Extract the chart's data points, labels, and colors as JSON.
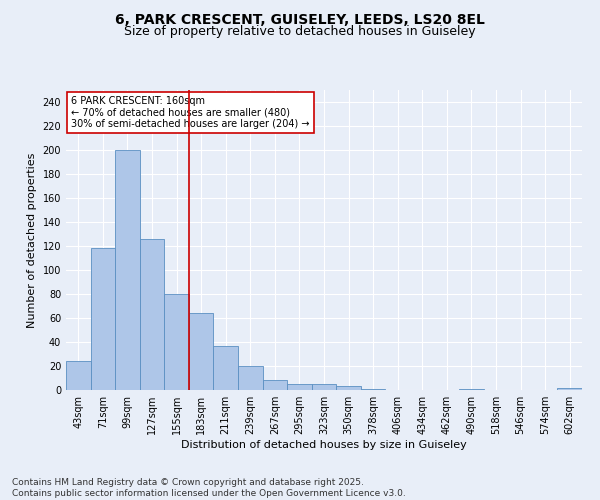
{
  "title_line1": "6, PARK CRESCENT, GUISELEY, LEEDS, LS20 8EL",
  "title_line2": "Size of property relative to detached houses in Guiseley",
  "xlabel": "Distribution of detached houses by size in Guiseley",
  "ylabel": "Number of detached properties",
  "categories": [
    "43sqm",
    "71sqm",
    "99sqm",
    "127sqm",
    "155sqm",
    "183sqm",
    "211sqm",
    "239sqm",
    "267sqm",
    "295sqm",
    "323sqm",
    "350sqm",
    "378sqm",
    "406sqm",
    "434sqm",
    "462sqm",
    "490sqm",
    "518sqm",
    "546sqm",
    "574sqm",
    "602sqm"
  ],
  "values": [
    24,
    118,
    200,
    126,
    80,
    64,
    37,
    20,
    8,
    5,
    5,
    3,
    1,
    0,
    0,
    0,
    1,
    0,
    0,
    0,
    2
  ],
  "bar_color": "#aec6e8",
  "bar_edge_color": "#5a8fc2",
  "background_color": "#e8eef8",
  "grid_color": "#ffffff",
  "ylim": [
    0,
    250
  ],
  "yticks": [
    0,
    20,
    40,
    60,
    80,
    100,
    120,
    140,
    160,
    180,
    200,
    220,
    240
  ],
  "annotation_line1": "6 PARK CRESCENT: 160sqm",
  "annotation_line2": "← 70% of detached houses are smaller (480)",
  "annotation_line3": "30% of semi-detached houses are larger (204) →",
  "annotation_box_color": "#ffffff",
  "annotation_box_edge": "#cc0000",
  "red_line_x": 4.5,
  "red_line_color": "#cc0000",
  "footer_line1": "Contains HM Land Registry data © Crown copyright and database right 2025.",
  "footer_line2": "Contains public sector information licensed under the Open Government Licence v3.0.",
  "title_fontsize": 10,
  "subtitle_fontsize": 9,
  "axis_label_fontsize": 8,
  "tick_fontsize": 7,
  "annotation_fontsize": 7,
  "footer_fontsize": 6.5
}
